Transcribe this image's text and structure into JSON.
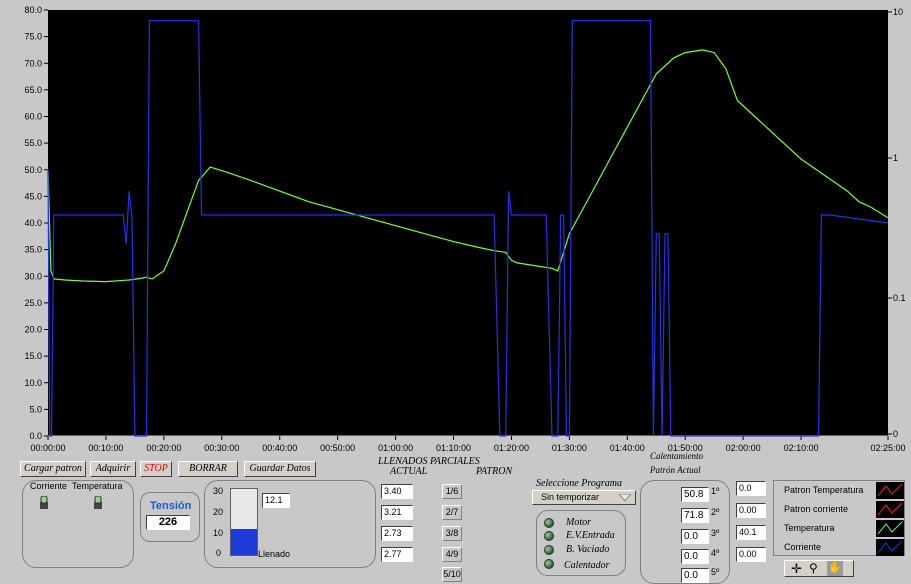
{
  "colors": {
    "plot_bg": "#000000",
    "temperature": "#7cff2e",
    "current": "#2433e6",
    "grid_text": "#000000"
  },
  "chart_data": {
    "type": "line",
    "y_ticks_left": [
      "80.0",
      "75.0",
      "70.0",
      "65.0",
      "60.0",
      "55.0",
      "50.0",
      "45.0",
      "40.0",
      "35.0",
      "30.0",
      "25.0",
      "20.0",
      "15.0",
      "10.0",
      "5.0",
      "0.0"
    ],
    "y_ticks_right": [
      "10",
      "1",
      "0.1",
      "0"
    ],
    "x_ticks": [
      "00:00:00",
      "00:10:00",
      "00:20:00",
      "00:30:00",
      "00:40:00",
      "00:50:00",
      "01:00:00",
      "01:10:00",
      "01:20:00",
      "01:30:00",
      "01:40:00",
      "01:50:00",
      "02:00:00",
      "02:10:00",
      "02:25:00"
    ],
    "ylim": [
      0,
      80
    ],
    "xlim_minutes": [
      0,
      145
    ],
    "series": [
      {
        "name": "Temperatura",
        "color": "#7cff2e",
        "x": [
          0,
          0.5,
          1,
          3,
          6,
          10,
          14,
          16,
          17,
          18,
          20,
          22,
          24,
          26,
          28,
          31,
          35,
          40,
          45,
          50,
          55,
          60,
          65,
          70,
          74,
          77,
          79,
          80,
          81,
          84,
          87,
          88,
          90,
          94,
          98,
          102,
          105,
          108,
          110,
          113,
          115,
          117,
          119,
          122,
          126,
          130,
          134,
          138,
          140,
          142,
          145
        ],
        "y": [
          50,
          31,
          29.5,
          29.3,
          29.1,
          29,
          29.3,
          29.6,
          29.8,
          29.5,
          31,
          36,
          42,
          48,
          50.5,
          49.5,
          48,
          46,
          44,
          42.5,
          41,
          39.5,
          38,
          36.5,
          35.5,
          34.8,
          34.5,
          33,
          32.5,
          32,
          31.5,
          31,
          38,
          46,
          54,
          62,
          68,
          71,
          72,
          72.5,
          72,
          69,
          63,
          60,
          56,
          52,
          49,
          46,
          44,
          43,
          41
        ]
      },
      {
        "name": "Corriente",
        "color": "#2433e6",
        "x": [
          0,
          0.3,
          0.6,
          1,
          13,
          13.5,
          14,
          14.5,
          15,
          16,
          17,
          17.5,
          18,
          22,
          24,
          25,
          26,
          26.5,
          27,
          40,
          60,
          77,
          78,
          79,
          79.5,
          80,
          81,
          86,
          87,
          88,
          88.5,
          89,
          89.5,
          90,
          90.5,
          91,
          101,
          102,
          103,
          104,
          104.5,
          105,
          105.5,
          106,
          106.5,
          107,
          107.5,
          108,
          130,
          131,
          131.5,
          132,
          132.5,
          133,
          133.5,
          134,
          135,
          145
        ],
        "y": [
          50,
          0,
          0,
          41.5,
          41.5,
          36,
          46,
          41,
          0,
          0,
          0,
          78,
          78,
          78,
          78,
          78,
          78,
          41.5,
          41.5,
          41.5,
          41.5,
          41.5,
          0,
          0,
          46,
          41.5,
          41.5,
          41.5,
          0,
          0,
          41.5,
          41.5,
          0,
          0,
          78,
          78,
          78,
          78,
          78,
          78,
          0,
          38,
          38,
          0,
          38,
          38,
          0,
          0,
          0,
          0,
          0,
          0,
          0,
          0,
          41.5,
          41.5,
          41.5,
          40
        ]
      }
    ]
  },
  "buttons": {
    "cargar_patron": "Cargar patron",
    "adquirir": "Adquirir",
    "stop": "STOP",
    "borrar": "BORRAR",
    "guardar_datos": "Guardar Datos"
  },
  "headers": {
    "llenados_parciales": "LLENADOS PARCIALES",
    "actual": "ACTUAL",
    "patron": "PATRON",
    "calentamiento": "Calentamiento",
    "patron_actual": "Patrón  Actual"
  },
  "switches": {
    "corriente_label": "Corriente",
    "temperatura_label": "Temperatura"
  },
  "tension": {
    "label": "Tensión",
    "value": "226"
  },
  "tank": {
    "scale": [
      "30",
      "20",
      "10",
      "0"
    ],
    "value_box": "12.1",
    "label": "Llenado",
    "level_fraction": 0.4
  },
  "llenados_actual": [
    "3.40",
    "3.21",
    "2.73",
    "2.77"
  ],
  "llenados_patron": [
    "1/6",
    "2/7",
    "3/8",
    "4/9",
    "5/10"
  ],
  "programa": {
    "label": "Seleccione Programa",
    "selected": "Sin temporizar"
  },
  "indicators": [
    "Motor",
    "E.V.Entrada",
    "B. Vaciado",
    "Calentador"
  ],
  "calentamiento": {
    "patron": [
      "50.8",
      "71.8",
      "0.0",
      "0.0",
      "0.0"
    ],
    "ordinals": [
      "1º",
      "2º",
      "3º",
      "4º",
      "5º"
    ],
    "actual": [
      "0.0",
      "0.00",
      "40.1",
      "0.00"
    ]
  },
  "legend": [
    "Patron Temperatura",
    "Patron corriente",
    "Temperatura",
    "Corriente"
  ],
  "legend_colors": [
    "#ff2020",
    "#ff2020",
    "#7cff2e",
    "#2433e6"
  ]
}
